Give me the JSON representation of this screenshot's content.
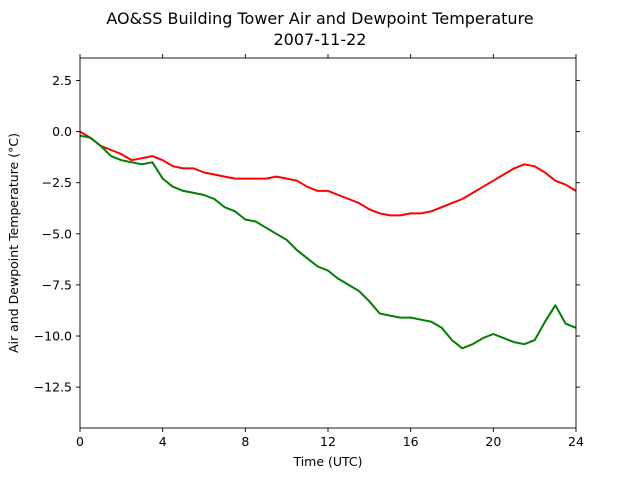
{
  "chart_data": {
    "type": "line",
    "title": "AO&SS Building Tower Air and Dewpoint Temperature",
    "subtitle": "2007-11-22",
    "xlabel": "Time (UTC)",
    "ylabel": "Air and Dewpoint Temperature (°C)",
    "xlim": [
      0,
      24
    ],
    "ylim": [
      -14.5,
      3.6
    ],
    "xticks": [
      0,
      4,
      8,
      12,
      16,
      20,
      24
    ],
    "xtick_labels": [
      "0",
      "4",
      "8",
      "12",
      "16",
      "20",
      "24"
    ],
    "yticks": [
      2.5,
      0.0,
      -2.5,
      -5.0,
      -7.5,
      -10.0,
      -12.5
    ],
    "ytick_labels": [
      "2.5",
      "0.0",
      "−2.5",
      "−5.0",
      "−7.5",
      "−10.0",
      "−12.5"
    ],
    "grid": false,
    "series": [
      {
        "color": "#ff0000",
        "x": [
          0,
          0.5,
          1,
          1.5,
          2,
          2.5,
          3,
          3.5,
          4,
          4.5,
          5,
          5.5,
          6,
          6.5,
          7,
          7.5,
          8,
          8.5,
          9,
          9.5,
          10,
          10.5,
          11,
          11.5,
          12,
          12.5,
          13,
          13.5,
          14,
          14.5,
          15,
          15.5,
          16,
          16.5,
          17,
          17.5,
          18,
          18.5,
          19,
          19.5,
          20,
          20.5,
          21,
          21.5,
          22,
          22.5,
          23,
          23.5,
          24
        ],
        "values": [
          0.0,
          -0.3,
          -0.7,
          -0.9,
          -1.1,
          -1.4,
          -1.3,
          -1.2,
          -1.4,
          -1.7,
          -1.8,
          -1.8,
          -2.0,
          -2.1,
          -2.2,
          -2.3,
          -2.3,
          -2.3,
          -2.3,
          -2.2,
          -2.3,
          -2.4,
          -2.7,
          -2.9,
          -2.9,
          -3.1,
          -3.3,
          -3.5,
          -3.8,
          -4.0,
          -4.1,
          -4.1,
          -4.0,
          -4.0,
          -3.9,
          -3.7,
          -3.5,
          -3.3,
          -3.0,
          -2.7,
          -2.4,
          -2.1,
          -1.8,
          -1.6,
          -1.7,
          -2.0,
          -2.4,
          -2.6,
          -2.9
        ]
      },
      {
        "color": "#008000",
        "x": [
          0,
          0.5,
          1,
          1.5,
          2,
          2.5,
          3,
          3.5,
          4,
          4.5,
          5,
          5.5,
          6,
          6.5,
          7,
          7.5,
          8,
          8.5,
          9,
          9.5,
          10,
          10.5,
          11,
          11.5,
          12,
          12.5,
          13,
          13.5,
          14,
          14.5,
          15,
          15.5,
          16,
          16.5,
          17,
          17.5,
          18,
          18.5,
          19,
          19.5,
          20,
          20.5,
          21,
          21.5,
          22,
          22.5,
          23,
          23.5,
          24
        ],
        "values": [
          -0.2,
          -0.3,
          -0.7,
          -1.2,
          -1.4,
          -1.5,
          -1.6,
          -1.5,
          -2.3,
          -2.7,
          -2.9,
          -3.0,
          -3.1,
          -3.3,
          -3.7,
          -3.9,
          -4.3,
          -4.4,
          -4.7,
          -5.0,
          -5.3,
          -5.8,
          -6.2,
          -6.6,
          -6.8,
          -7.2,
          -7.5,
          -7.8,
          -8.3,
          -8.9,
          -9.0,
          -9.1,
          -9.1,
          -9.2,
          -9.3,
          -9.6,
          -10.2,
          -10.6,
          -10.4,
          -10.1,
          -9.9,
          -10.1,
          -10.3,
          -10.4,
          -10.2,
          -9.3,
          -8.5,
          -9.4,
          -9.6
        ]
      }
    ]
  }
}
